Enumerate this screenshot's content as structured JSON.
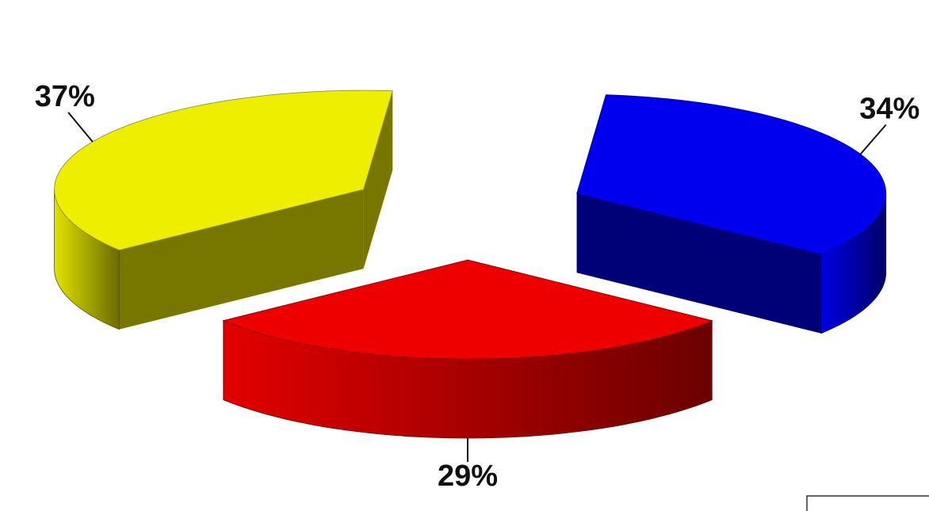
{
  "chart_data": {
    "type": "pie",
    "values": [
      29,
      37,
      34
    ],
    "value_labels": [
      "29%",
      "37%",
      "34%"
    ],
    "colors": [
      "#ee0000",
      "#eeee00",
      "#0000ee"
    ]
  }
}
